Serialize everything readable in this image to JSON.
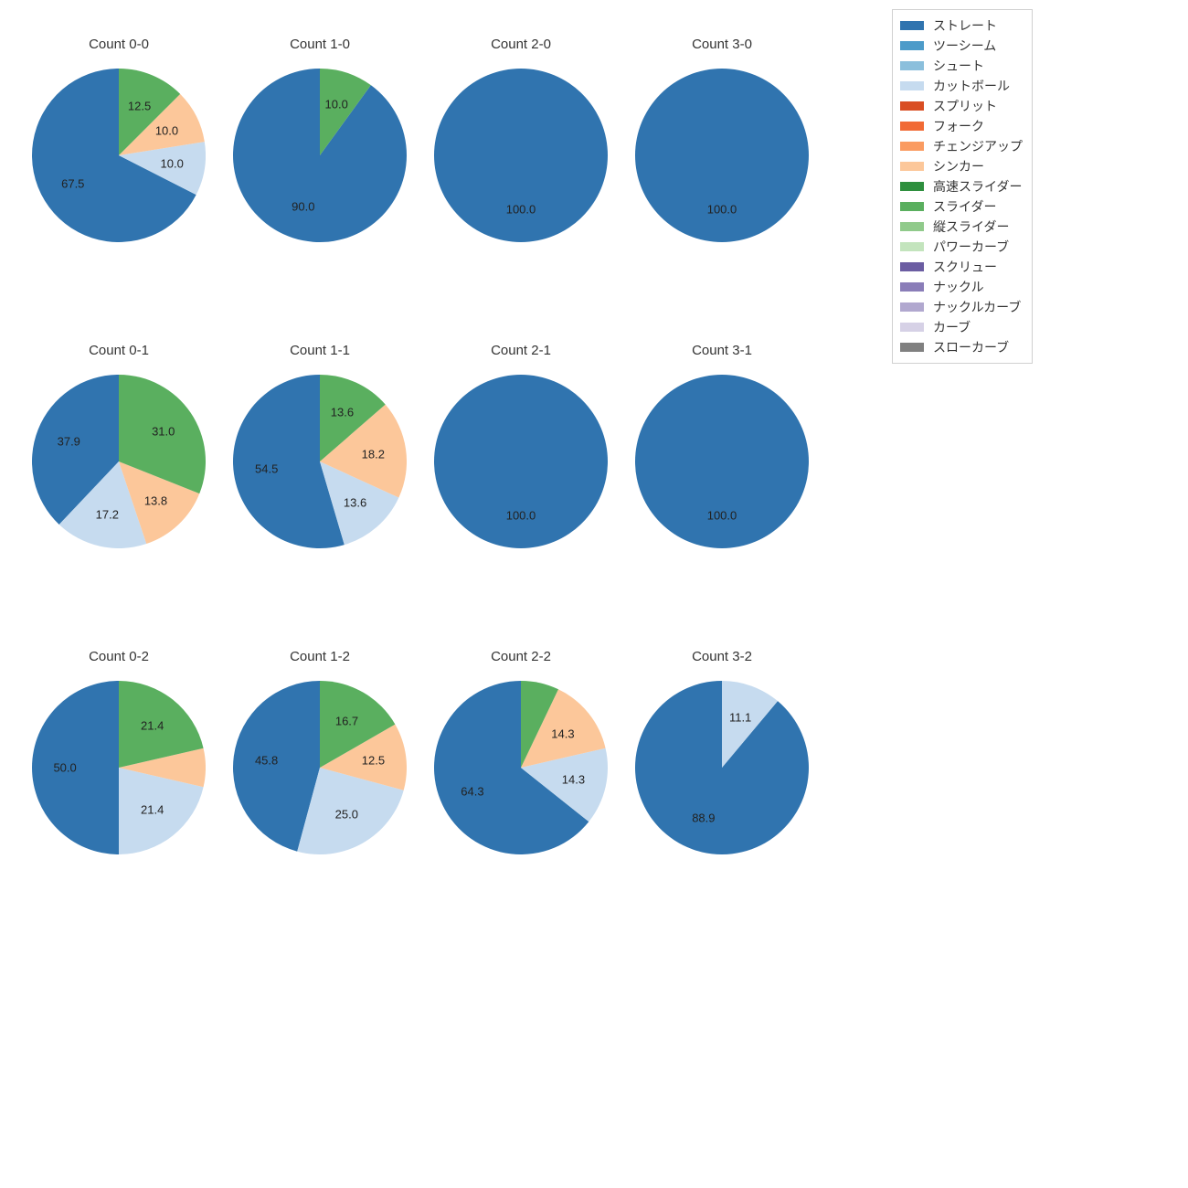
{
  "legend": [
    {
      "label": "ストレート",
      "color": "#3074af"
    },
    {
      "label": "ツーシーム",
      "color": "#4d9bc9"
    },
    {
      "label": "シュート",
      "color": "#8bbfdc"
    },
    {
      "label": "カットボール",
      "color": "#c6dbef"
    },
    {
      "label": "スプリット",
      "color": "#d94e23"
    },
    {
      "label": "フォーク",
      "color": "#f16a35"
    },
    {
      "label": "チェンジアップ",
      "color": "#fa9b61"
    },
    {
      "label": "シンカー",
      "color": "#fcc79a"
    },
    {
      "label": "高速スライダー",
      "color": "#2e8f3e"
    },
    {
      "label": "スライダー",
      "color": "#5aaf5f"
    },
    {
      "label": "縦スライダー",
      "color": "#90ca8b"
    },
    {
      "label": "パワーカーブ",
      "color": "#c3e4bd"
    },
    {
      "label": "スクリュー",
      "color": "#6b5da2"
    },
    {
      "label": "ナックル",
      "color": "#8a7db8"
    },
    {
      "label": "ナックルカーブ",
      "color": "#b1a8cf"
    },
    {
      "label": "カーブ",
      "color": "#d6d1e6"
    },
    {
      "label": "スローカーブ",
      "color": "#808080"
    }
  ],
  "background_color": "#ffffff",
  "pie_start_angle": 90,
  "pie_direction": "counterclockwise",
  "label_fontsize": 13,
  "title_fontsize": 15,
  "charts": [
    [
      {
        "title": "Count 0-0",
        "slices": [
          {
            "value": 67.5,
            "color": "#3074af"
          },
          {
            "value": 10.0,
            "color": "#c6dbef"
          },
          {
            "value": 10.0,
            "color": "#fcc79a"
          },
          {
            "value": 12.5,
            "color": "#5aaf5f"
          }
        ]
      },
      {
        "title": "Count 1-0",
        "slices": [
          {
            "value": 90.0,
            "color": "#3074af"
          },
          {
            "value": 10.0,
            "color": "#5aaf5f"
          }
        ]
      },
      {
        "title": "Count 2-0",
        "slices": [
          {
            "value": 100.0,
            "color": "#3074af"
          }
        ]
      },
      {
        "title": "Count 3-0",
        "slices": [
          {
            "value": 100.0,
            "color": "#3074af"
          }
        ]
      }
    ],
    [
      {
        "title": "Count 0-1",
        "slices": [
          {
            "value": 37.9,
            "color": "#3074af"
          },
          {
            "value": 17.2,
            "color": "#c6dbef"
          },
          {
            "value": 13.8,
            "color": "#fcc79a"
          },
          {
            "value": 31.0,
            "color": "#5aaf5f"
          }
        ]
      },
      {
        "title": "Count 1-1",
        "slices": [
          {
            "value": 54.5,
            "color": "#3074af"
          },
          {
            "value": 13.6,
            "color": "#c6dbef"
          },
          {
            "value": 18.2,
            "color": "#fcc79a"
          },
          {
            "value": 13.6,
            "color": "#5aaf5f"
          }
        ]
      },
      {
        "title": "Count 2-1",
        "slices": [
          {
            "value": 100.0,
            "color": "#3074af"
          }
        ]
      },
      {
        "title": "Count 3-1",
        "slices": [
          {
            "value": 100.0,
            "color": "#3074af"
          }
        ]
      }
    ],
    [
      {
        "title": "Count 0-2",
        "slices": [
          {
            "value": 50.0,
            "color": "#3074af"
          },
          {
            "value": 21.4,
            "color": "#c6dbef"
          },
          {
            "value": 7.2,
            "color": "#fcc79a",
            "hide_label": true
          },
          {
            "value": 21.4,
            "color": "#5aaf5f"
          }
        ]
      },
      {
        "title": "Count 1-2",
        "slices": [
          {
            "value": 45.8,
            "color": "#3074af"
          },
          {
            "value": 25.0,
            "color": "#c6dbef"
          },
          {
            "value": 12.5,
            "color": "#fcc79a"
          },
          {
            "value": 16.7,
            "color": "#5aaf5f"
          }
        ]
      },
      {
        "title": "Count 2-2",
        "slices": [
          {
            "value": 64.3,
            "color": "#3074af"
          },
          {
            "value": 14.3,
            "color": "#c6dbef"
          },
          {
            "value": 14.3,
            "color": "#fcc79a"
          },
          {
            "value": 7.1,
            "color": "#5aaf5f",
            "hide_label": true
          }
        ]
      },
      {
        "title": "Count 3-2",
        "slices": [
          {
            "value": 88.9,
            "color": "#3074af"
          },
          {
            "value": 11.1,
            "color": "#c6dbef"
          }
        ]
      }
    ]
  ]
}
